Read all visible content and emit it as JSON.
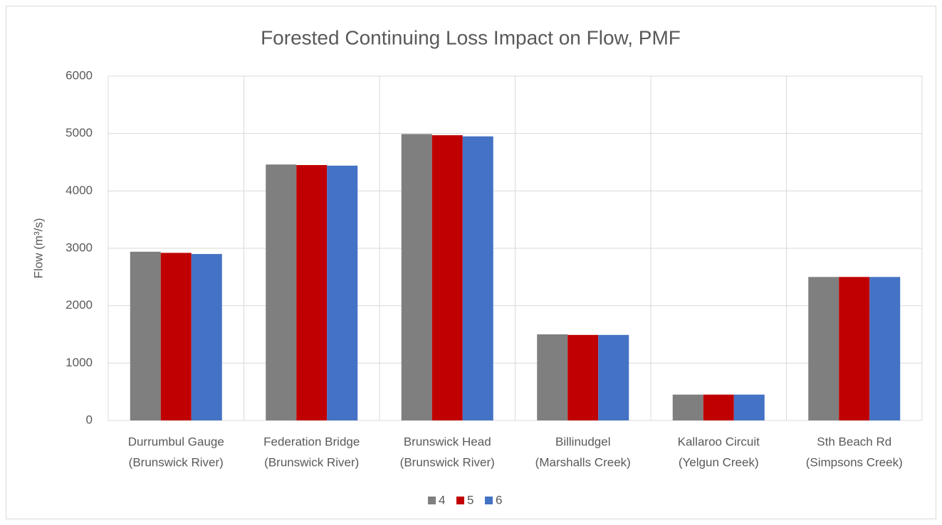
{
  "chart_data": {
    "type": "bar",
    "title": "Forested Continuing Loss Impact on Flow, PMF",
    "y_label": "Flow (m³/s)",
    "categories": [
      [
        "Durrumbul Gauge",
        "(Brunswick River)"
      ],
      [
        "Federation Bridge",
        "(Brunswick River)"
      ],
      [
        "Brunswick Head",
        "(Brunswick River)"
      ],
      [
        "Billinudgel",
        "(Marshalls Creek)"
      ],
      [
        "Kallaroo Circuit",
        "(Yelgun Creek)"
      ],
      [
        "Sth Beach Rd",
        "(Simpsons Creek)"
      ]
    ],
    "series": [
      {
        "name": "4",
        "color": "#7f7f7f",
        "values": [
          2940,
          4460,
          4990,
          1500,
          450,
          2500
        ]
      },
      {
        "name": "5",
        "color": "#c00000",
        "values": [
          2920,
          4450,
          4970,
          1490,
          450,
          2500
        ]
      },
      {
        "name": "6",
        "color": "#4472c4",
        "values": [
          2900,
          4440,
          4950,
          1490,
          450,
          2500
        ]
      }
    ],
    "ylim": [
      0,
      6000
    ],
    "yticks": [
      0,
      1000,
      2000,
      3000,
      4000,
      5000,
      6000
    ],
    "grid": true,
    "legend": "bottom"
  }
}
